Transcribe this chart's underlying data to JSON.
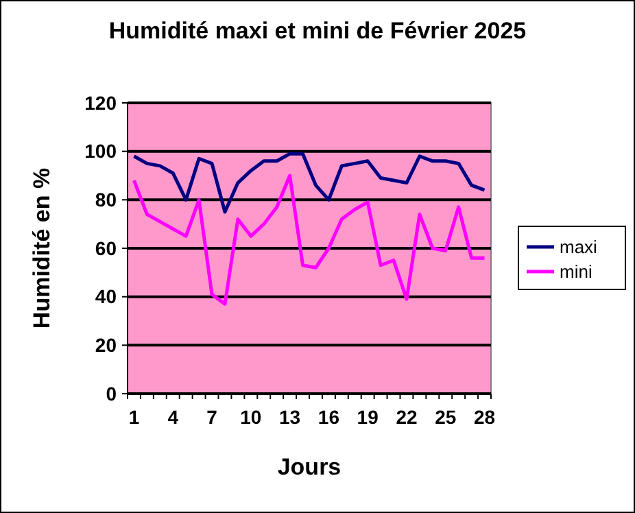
{
  "chart_data": {
    "type": "line",
    "title": "Humidité maxi et mini de Février 2025",
    "xlabel": "Jours",
    "ylabel": "Humidité en %",
    "categories": [
      "1",
      null,
      null,
      "4",
      null,
      null,
      "7",
      null,
      null,
      "10",
      null,
      null,
      "13",
      null,
      null,
      "16",
      null,
      null,
      "19",
      null,
      null,
      "22",
      null,
      null,
      "25",
      null,
      null,
      "28"
    ],
    "series": [
      {
        "name": "maxi",
        "color": "#000080",
        "values": [
          98,
          95,
          94,
          91,
          80,
          97,
          95,
          75,
          87,
          92,
          96,
          96,
          99,
          99,
          86,
          80,
          94,
          95,
          96,
          89,
          88,
          87,
          98,
          96,
          96,
          95,
          86,
          84
        ]
      },
      {
        "name": "mini",
        "color": "#ff00ff",
        "values": [
          88,
          74,
          71,
          68,
          65,
          80,
          41,
          37,
          72,
          65,
          70,
          77,
          90,
          53,
          52,
          60,
          72,
          76,
          79,
          53,
          55,
          39,
          74,
          60,
          59,
          77,
          56,
          56
        ]
      }
    ],
    "ylim": [
      0,
      120
    ],
    "yticks": [
      0,
      20,
      40,
      60,
      80,
      100,
      120
    ],
    "grid": "y",
    "legend": "right",
    "marker": "none",
    "line_style": "solid"
  }
}
